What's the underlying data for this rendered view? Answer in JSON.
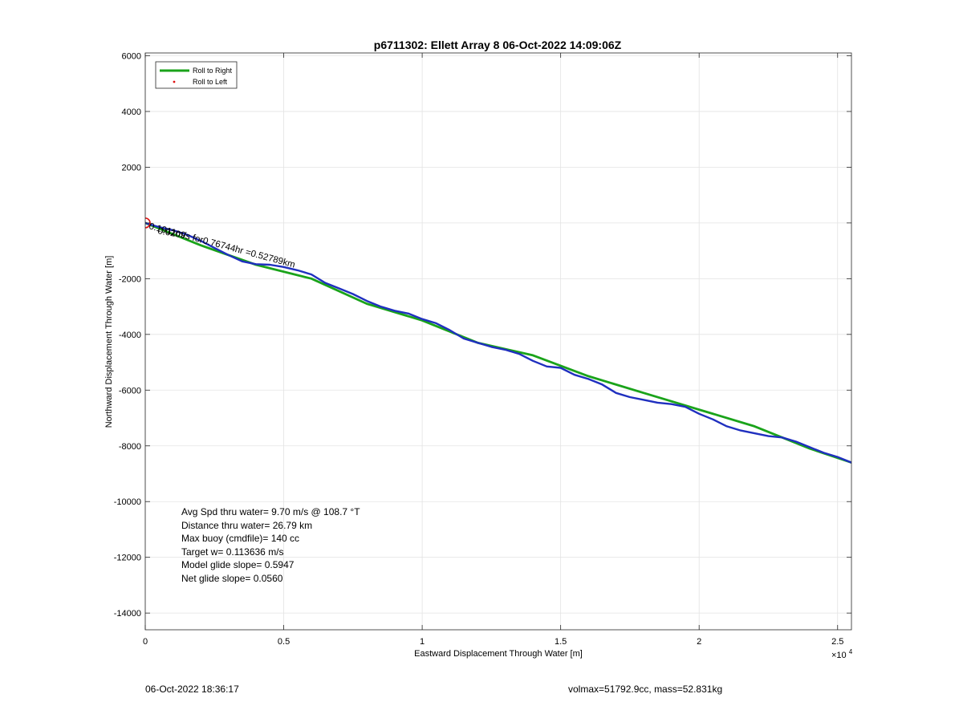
{
  "chart_data": {
    "type": "line",
    "title": "p6711302: Ellett Array 8 06-Oct-2022 14:09:06Z",
    "xlabel": "Eastward Displacement Through Water [m]",
    "ylabel": "Northward Displacement Through Water [m]",
    "x_exponent_label": "×10",
    "x_exponent_power": "4",
    "xlim": [
      0,
      25500
    ],
    "ylim": [
      -14600,
      6100
    ],
    "x_ticks": [
      0,
      5000,
      10000,
      15000,
      20000,
      25000
    ],
    "x_tick_labels": [
      "0",
      "0.5",
      "1",
      "1.5",
      "2",
      "2.5"
    ],
    "y_ticks": [
      6000,
      4000,
      2000,
      0,
      -2000,
      -4000,
      -6000,
      -8000,
      -10000,
      -12000,
      -14000
    ],
    "y_tick_labels": [
      "6000",
      "4000",
      "2000",
      "",
      "-2000",
      "-4000",
      "-6000",
      "-8000",
      "-10000",
      "-12000",
      "-14000"
    ],
    "grid": true,
    "legend": {
      "position": "top-left",
      "entries": [
        {
          "label": "Roll to Right",
          "color": "#1aa31a",
          "style": "line"
        },
        {
          "label": "Roll to Left",
          "color": "#e01010",
          "style": "dot"
        }
      ]
    },
    "series": [
      {
        "name": "Roll to Right",
        "color": "#1aa31a",
        "x": [
          0,
          2000,
          4000,
          6000,
          8000,
          10000,
          12000,
          14000,
          16000,
          18000,
          20000,
          22000,
          24000,
          25500
        ],
        "y": [
          0,
          -800,
          -1500,
          -2000,
          -2900,
          -3500,
          -4300,
          -4750,
          -5500,
          -6100,
          -6700,
          -7300,
          -8100,
          -8600
        ]
      },
      {
        "color": "#1f2fbf",
        "x": [
          0,
          500,
          1000,
          1500,
          2000,
          2500,
          3000,
          3500,
          4000,
          4500,
          5000,
          5500,
          6000,
          6500,
          7000,
          7500,
          8000,
          8500,
          9000,
          9500,
          10000,
          10500,
          11000,
          11500,
          12000,
          12500,
          13000,
          13500,
          14000,
          14500,
          15000,
          15500,
          16000,
          16500,
          17000,
          17500,
          18000,
          18500,
          19000,
          19500,
          20000,
          20500,
          21000,
          21500,
          22000,
          22500,
          23000,
          23500,
          24000,
          24500,
          25000,
          25500
        ],
        "y": [
          0,
          -150,
          -260,
          -420,
          -640,
          -900,
          -1150,
          -1380,
          -1480,
          -1500,
          -1580,
          -1700,
          -1850,
          -2150,
          -2350,
          -2550,
          -2800,
          -3000,
          -3150,
          -3250,
          -3450,
          -3600,
          -3850,
          -4150,
          -4300,
          -4450,
          -4550,
          -4700,
          -4950,
          -5150,
          -5200,
          -5450,
          -5600,
          -5800,
          -6100,
          -6250,
          -6350,
          -6450,
          -6500,
          -6600,
          -6850,
          -7050,
          -7300,
          -7450,
          -7550,
          -7650,
          -7700,
          -7850,
          -8050,
          -8250,
          -8400,
          -8600
        ]
      }
    ],
    "start_marker": {
      "x": 0,
      "y": 0,
      "color": "#e01010"
    },
    "track_annotation": "0.1911m/s for0.76744hr =0.52789km",
    "overlap_label": "0.0209",
    "stats": [
      "Avg Spd thru water=  9.70 m/s @ 108.7 °T",
      "Distance thru water= 26.79 km",
      "Max buoy (cmdfile)= 140 cc",
      "Target w= 0.113636 m/s",
      "Model glide slope= 0.5947",
      "Net glide slope= 0.0560"
    ]
  },
  "footer": {
    "left": "06-Oct-2022 18:36:17",
    "right": "volmax=51792.9cc, mass=52.831kg"
  }
}
